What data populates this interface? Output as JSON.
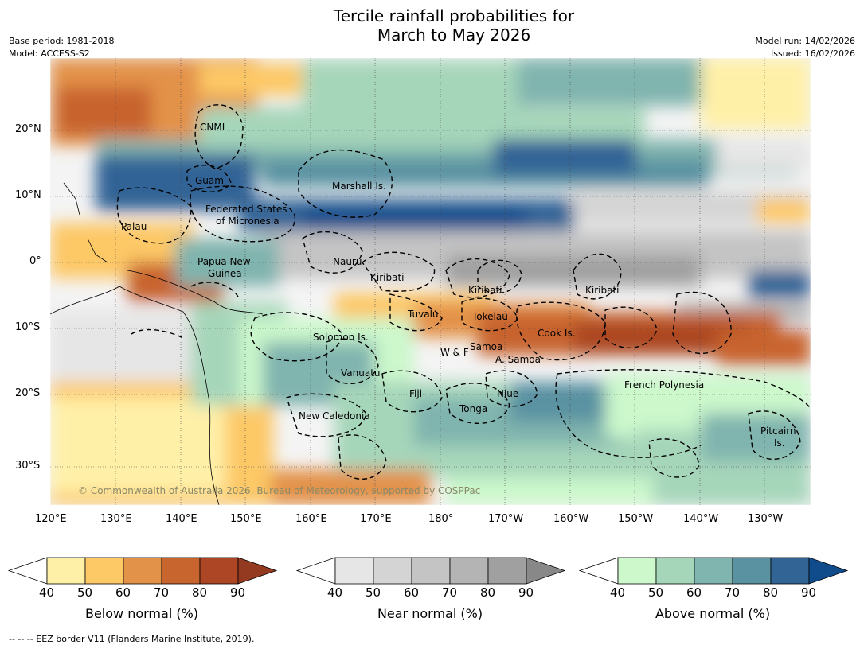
{
  "title": {
    "line1": "Tercile rainfall probabilities for",
    "line2": "March to May 2026"
  },
  "meta": {
    "base_period": "Base period: 1981-2018",
    "model": "Model: ACCESS-S2",
    "model_run": "Model run: 14/02/2026",
    "issued": "Issued: 16/02/2026"
  },
  "axes": {
    "lat_ticks": [
      "20°N",
      "10°N",
      "0°",
      "10°S",
      "20°S",
      "30°S"
    ],
    "lon_ticks": [
      "120°E",
      "130°E",
      "140°E",
      "150°E",
      "160°E",
      "170°E",
      "180°",
      "170°W",
      "160°W",
      "150°W",
      "140°W",
      "130°W"
    ]
  },
  "regions": {
    "cnmi": "CNMI",
    "guam": "Guam",
    "marshall": "Marshall Is.",
    "fsm_1": "Federated States",
    "fsm_2": "of Micronesia",
    "palau": "Palau",
    "png_1": "Papua New",
    "png_2": "Guinea",
    "nauru": "Nauru",
    "kiribati_w": "Kiribati",
    "kiribati_c": "Kiribati",
    "kiribati_e": "Kiribati",
    "tuvalu": "Tuvalu",
    "tokelau": "Tokelau",
    "cook": "Cook Is.",
    "solomon": "Solomon Is.",
    "wf": "W & F",
    "samoa": "Samoa",
    "asamoa": "A. Samoa",
    "vanuatu": "Vanuatu",
    "fiji": "Fiji",
    "niue": "Niue",
    "tonga": "Tonga",
    "french_poly": "French Polynesia",
    "new_caledonia": "New Caledonia",
    "pitcairn_1": "Pitcairn",
    "pitcairn_2": "Is."
  },
  "copyright": "© Commonwealth of Australia 2026, Bureau of Meteorology, supported by COSPPac",
  "colorbars": [
    {
      "label": "Below normal (%)",
      "ticks": [
        "40",
        "50",
        "60",
        "70",
        "80",
        "90"
      ],
      "colors": [
        "#fff0a8",
        "#fdc866",
        "#e3924a",
        "#c8642e",
        "#ac4624",
        "#933a20"
      ]
    },
    {
      "label": "Near normal (%)",
      "ticks": [
        "40",
        "50",
        "60",
        "70",
        "80",
        "90"
      ],
      "colors": [
        "#e6e6e6",
        "#d4d4d4",
        "#c4c4c4",
        "#b4b4b4",
        "#a0a0a0",
        "#888888"
      ]
    },
    {
      "label": "Above normal (%)",
      "ticks": [
        "40",
        "50",
        "60",
        "70",
        "80",
        "90"
      ],
      "colors": [
        "#ccf8cc",
        "#a6d6ba",
        "#80b4ae",
        "#5a92a2",
        "#326496",
        "#104c8c"
      ]
    }
  ],
  "footnote": "--  --  -- EEZ border V11 (Flanders Marine Institute, 2019)."
}
